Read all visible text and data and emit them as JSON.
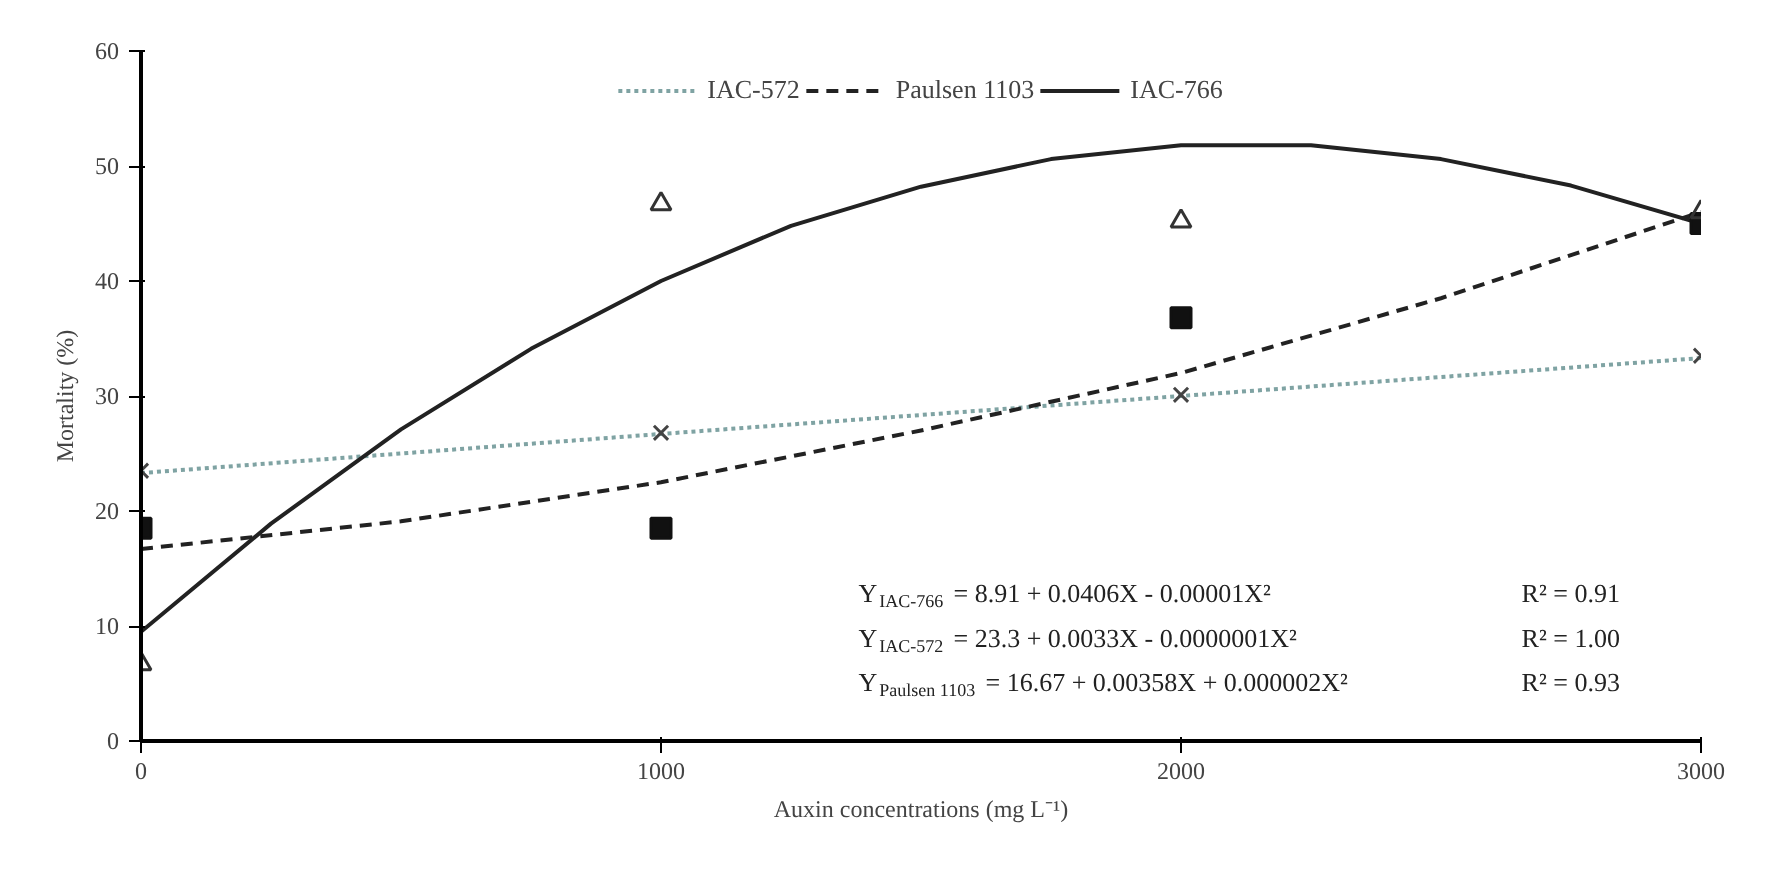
{
  "chart_data": {
    "type": "line",
    "xlabel": "Auxin concentrations (mg L⁻¹)",
    "ylabel": "Mortality (%)",
    "xlim": [
      0,
      3000
    ],
    "ylim": [
      0,
      60
    ],
    "xticks": [
      0,
      1000,
      2000,
      3000
    ],
    "yticks": [
      0,
      10,
      20,
      30,
      40,
      50,
      60
    ],
    "grid": false,
    "legend": "top",
    "series": [
      {
        "name": "IAC-572",
        "line_style": "dotted",
        "color": "#7fa3a3",
        "x": [
          0,
          1000,
          2000,
          3000
        ],
        "values": [
          23.3,
          26.7,
          30.0,
          33.3
        ]
      },
      {
        "name": "Paulsen 1103",
        "line_style": "dashed",
        "color": "#222222",
        "x": [
          0,
          500,
          1000,
          1500,
          2000,
          2500,
          3000
        ],
        "values": [
          16.7,
          19.1,
          22.5,
          27.0,
          32.0,
          38.5,
          46.0
        ]
      },
      {
        "name": "IAC-766",
        "line_style": "solid",
        "color": "#222222",
        "x": [
          0,
          250,
          500,
          750,
          1000,
          1250,
          1500,
          1750,
          2000,
          2250,
          2500,
          2750,
          3000
        ],
        "values": [
          9.5,
          18.9,
          27.1,
          34.1,
          40.0,
          44.8,
          48.2,
          50.6,
          51.8,
          51.8,
          50.6,
          48.3,
          45.0
        ]
      },
      {
        "type": "scatter",
        "marker": "cross",
        "color": "#444444",
        "x": [
          0,
          1000,
          2000,
          3000
        ],
        "values": [
          23.5,
          26.8,
          30.1,
          33.5
        ]
      },
      {
        "type": "scatter",
        "marker": "square",
        "color": "#111111",
        "x": [
          0,
          1000,
          2000,
          3000
        ],
        "values": [
          18.5,
          18.5,
          36.8,
          45.0
        ]
      },
      {
        "type": "scatter",
        "marker": "triangle",
        "color": "#333333",
        "x": [
          0,
          1000,
          2000,
          3000
        ],
        "values": [
          6.7,
          46.7,
          45.2,
          46.0
        ]
      }
    ],
    "annotations": [
      "Y$_{IAC-766}$ = 8.91 + 0.0406X - 0.00001X²",
      "R² = 0.91",
      "Y$_{IAC-572}$ = 23.3 + 0.0033X - 0.0000001X²",
      "R² = 1.00",
      "Y$_{Paulsen 1103}$ = 16.67 + 0.00358X + 0.000002X²",
      "R² = 0.93"
    ]
  }
}
